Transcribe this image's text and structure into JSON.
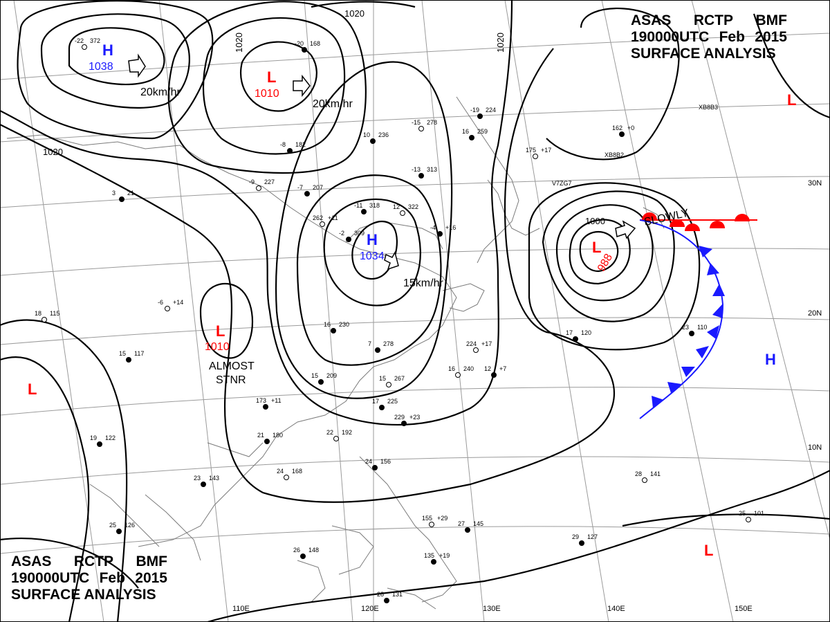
{
  "header": {
    "agency": "ASAS",
    "station": "RCTP",
    "office": "BMF",
    "time": "190000UTC",
    "month": "Feb",
    "year": "2015",
    "product": "SURFACE ANALYSIS"
  },
  "colors": {
    "high": "#1a1aff",
    "low": "#ff0000",
    "isobar": "#000000",
    "grid": "#999999",
    "coast": "#777777"
  },
  "longitudes": [
    "110E",
    "120E",
    "130E",
    "140E",
    "150E"
  ],
  "latitudes": [
    "30N",
    "20N",
    "10N"
  ],
  "isobar_labels": [
    "1020",
    "1020",
    "1020",
    "1020",
    "1000"
  ],
  "pressure_centers": [
    {
      "type": "H",
      "value": "1038",
      "motion": "20km/hr"
    },
    {
      "type": "L",
      "value": "1010",
      "motion": "20km/hr"
    },
    {
      "type": "H",
      "value": "1034",
      "motion": "15km/hr"
    },
    {
      "type": "L",
      "value": "1010",
      "note": "ALMOST STNR"
    },
    {
      "type": "L",
      "value": "988",
      "motion": "SLOWLY"
    },
    {
      "type": "L"
    },
    {
      "type": "L"
    },
    {
      "type": "H"
    },
    {
      "type": "L"
    }
  ],
  "ships": [
    "XB8B3",
    "XB8B2",
    "V7ZG7"
  ],
  "stations": [
    {
      "t": "-22",
      "p": "372"
    },
    {
      "t": "-20",
      "p": "168"
    },
    {
      "t": "-19",
      "p": "224"
    },
    {
      "t": "-15",
      "p": "278"
    },
    {
      "t": "-13",
      "p": "313"
    },
    {
      "t": "-11",
      "p": "318"
    },
    {
      "t": "-9",
      "p": "227"
    },
    {
      "t": "-8",
      "p": "182"
    },
    {
      "t": "-7",
      "p": "207"
    },
    {
      "t": "-6",
      "p": "+14"
    },
    {
      "t": "-2",
      "p": "309"
    },
    {
      "t": "3",
      "p": "21"
    },
    {
      "t": "12",
      "p": "322"
    },
    {
      "t": "15",
      "p": "117"
    },
    {
      "t": "15",
      "p": "209"
    },
    {
      "t": "16",
      "p": "240"
    },
    {
      "t": "16",
      "p": "230"
    },
    {
      "t": "17",
      "p": "120"
    },
    {
      "t": "18",
      "p": "115"
    },
    {
      "t": "19",
      "p": "122"
    },
    {
      "t": "21",
      "p": "180"
    },
    {
      "t": "22",
      "p": "192"
    },
    {
      "t": "23",
      "p": "110"
    },
    {
      "t": "23",
      "p": "143"
    },
    {
      "t": "24",
      "p": "168"
    },
    {
      "t": "24",
      "p": "156"
    },
    {
      "t": "25",
      "p": "126"
    },
    {
      "t": "25",
      "p": "101"
    },
    {
      "t": "26",
      "p": "148"
    },
    {
      "t": "27",
      "p": "145"
    },
    {
      "t": "28",
      "p": "141"
    },
    {
      "t": "29",
      "p": "127"
    },
    {
      "t": "28",
      "p": "131"
    },
    {
      "t": "15",
      "p": "267"
    },
    {
      "t": "17",
      "p": "225"
    },
    {
      "t": "7",
      "p": "278"
    },
    {
      "t": "262",
      "p": "+11"
    },
    {
      "t": "16",
      "p": "259"
    },
    {
      "t": "162",
      "p": "+0"
    },
    {
      "t": "175",
      "p": "+17"
    },
    {
      "t": "10",
      "p": "236"
    },
    {
      "t": "-4",
      "p": "+16"
    },
    {
      "t": "224",
      "p": "+17"
    },
    {
      "t": "229",
      "p": "+23"
    },
    {
      "t": "12",
      "p": "+7"
    },
    {
      "t": "155",
      "p": "+29"
    },
    {
      "t": "135",
      "p": "+19"
    },
    {
      "t": "173",
      "p": "+11"
    }
  ]
}
